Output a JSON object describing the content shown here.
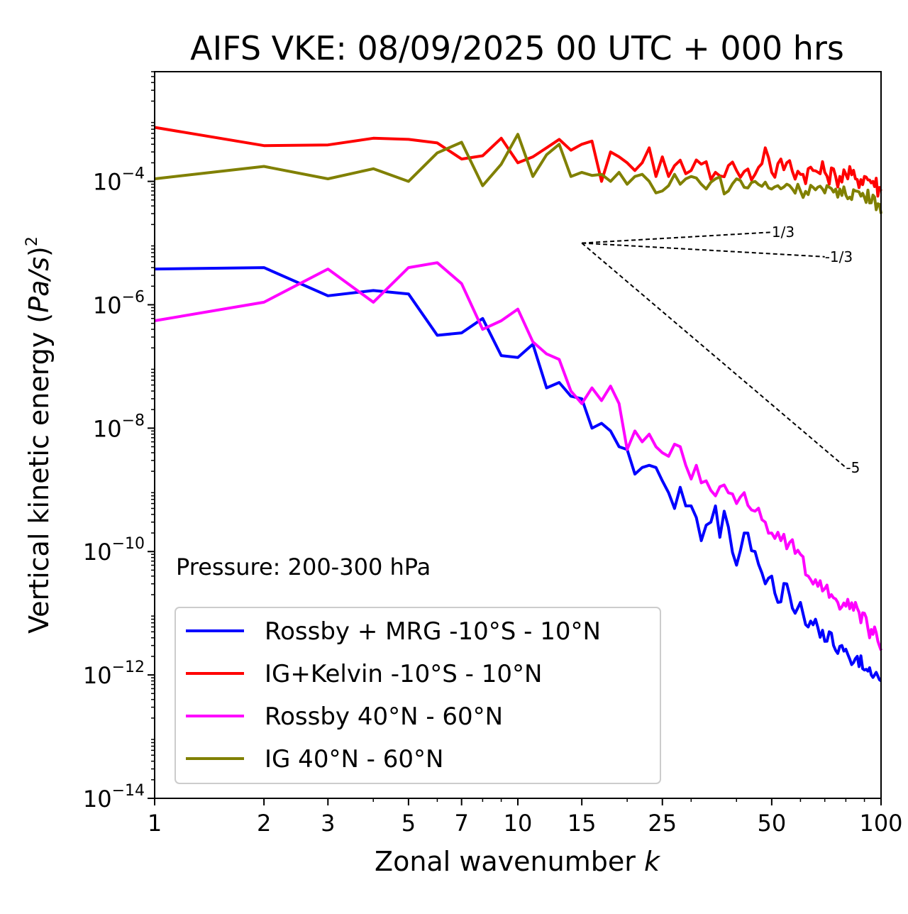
{
  "chart_data": {
    "type": "line",
    "title": "AIFS VKE: 08/09/2025 00 UTC + 000 hrs",
    "xlabel": "Zonal wavenumber ",
    "xlabel_var": "k",
    "ylabel": "Vertical kinetic energy (",
    "ylabel_var": "Pa/s",
    "ylabel_close": ")",
    "ylabel_exp": "2",
    "annotation": "Pressure: 200-300 hPa",
    "x_scale": "log",
    "y_scale": "log",
    "xlim": [
      1,
      100
    ],
    "ylim": [
      1e-14,
      0.006
    ],
    "x_ticks": [
      1,
      2,
      3,
      5,
      7,
      10,
      15,
      25,
      50,
      100
    ],
    "x_tick_labels": [
      "1",
      "2",
      "3",
      "5",
      "7",
      "10",
      "15",
      "25",
      "50",
      "100"
    ],
    "y_ticks": [
      -4,
      -6,
      -8,
      -10,
      -12,
      -14
    ],
    "y_tick_base": "10",
    "y_tick_exps": [
      "−4",
      "−6",
      "−8",
      "−10",
      "−12",
      "−14"
    ],
    "legend_position": "lower-left",
    "series": [
      {
        "name": "Rossby + MRG -10°S - 10°N",
        "color": "#0000ff",
        "anchors": [
          [
            1,
            3.8e-06
          ],
          [
            2,
            4e-06
          ],
          [
            3,
            1.4e-06
          ],
          [
            4,
            1.7e-06
          ],
          [
            5,
            1.5e-06
          ],
          [
            6,
            3.2e-07
          ],
          [
            7,
            3.5e-07
          ],
          [
            8,
            6e-07
          ],
          [
            9,
            1.5e-07
          ],
          [
            10,
            1.4e-07
          ],
          [
            11,
            2.3e-07
          ],
          [
            12,
            4.5e-08
          ],
          [
            13,
            5.5e-08
          ],
          [
            14,
            3.3e-08
          ],
          [
            15,
            3e-08
          ],
          [
            16,
            1e-08
          ],
          [
            17,
            1.2e-08
          ],
          [
            18,
            9e-09
          ],
          [
            19,
            5e-09
          ],
          [
            20,
            4.5e-09
          ],
          [
            21,
            1.8e-09
          ],
          [
            22,
            2.3e-09
          ],
          [
            23,
            2.5e-09
          ],
          [
            24,
            2.3e-09
          ],
          [
            25,
            1.4e-09
          ],
          [
            26,
            9e-10
          ],
          [
            27,
            5e-10
          ],
          [
            28,
            1.1e-09
          ],
          [
            29,
            5.5e-10
          ],
          [
            30,
            5.5e-10
          ],
          [
            32,
            1.5e-10
          ],
          [
            34,
            3e-10
          ],
          [
            35,
            5.5e-10
          ],
          [
            36,
            1.7e-10
          ],
          [
            37,
            4.5e-10
          ],
          [
            38,
            2.5e-10
          ],
          [
            40,
            6e-11
          ],
          [
            42,
            2e-10
          ],
          [
            45,
            1e-10
          ],
          [
            48,
            3e-11
          ],
          [
            50,
            4e-11
          ],
          [
            52,
            1.5e-11
          ],
          [
            55,
            3e-11
          ],
          [
            58,
            1e-11
          ],
          [
            60,
            1.5e-11
          ],
          [
            63,
            6e-12
          ],
          [
            66,
            8e-12
          ],
          [
            70,
            3.5e-12
          ],
          [
            72,
            5e-12
          ],
          [
            75,
            2.5e-12
          ],
          [
            78,
            3e-12
          ],
          [
            82,
            1.8e-12
          ],
          [
            86,
            2e-12
          ],
          [
            90,
            1.2e-12
          ],
          [
            94,
            1e-12
          ],
          [
            97,
            1.1e-12
          ],
          [
            100,
            8e-13
          ]
        ],
        "noise": 0.12
      },
      {
        "name": "IG+Kelvin -10°S - 10°N",
        "color": "#ff0000",
        "anchors": [
          [
            1,
            0.00075
          ],
          [
            2,
            0.00038
          ],
          [
            3,
            0.00039
          ],
          [
            4,
            0.0005
          ],
          [
            5,
            0.00048
          ],
          [
            6,
            0.00042
          ],
          [
            7,
            0.00023
          ],
          [
            8,
            0.00026
          ],
          [
            9,
            0.0005
          ],
          [
            10,
            0.0002
          ],
          [
            11,
            0.00025
          ],
          [
            12,
            0.00035
          ],
          [
            13,
            0.00048
          ],
          [
            14,
            0.00032
          ],
          [
            15,
            0.0004
          ],
          [
            16,
            0.00045
          ],
          [
            17,
            0.0001
          ],
          [
            18,
            0.0003
          ],
          [
            19,
            0.00025
          ],
          [
            20,
            0.0002
          ],
          [
            21,
            0.00015
          ],
          [
            22,
            0.0002
          ],
          [
            23,
            0.00035
          ],
          [
            24,
            0.00012
          ],
          [
            25,
            0.00025
          ],
          [
            26,
            0.00012
          ],
          [
            27,
            0.00018
          ],
          [
            28,
            0.00022
          ],
          [
            30,
            0.00015
          ],
          [
            32,
            0.00019
          ],
          [
            35,
            0.00014
          ],
          [
            38,
            0.00018
          ],
          [
            40,
            0.00015
          ],
          [
            45,
            0.00013
          ],
          [
            48,
            0.00035
          ],
          [
            50,
            0.00014
          ],
          [
            55,
            0.0002
          ],
          [
            60,
            0.00013
          ],
          [
            65,
            0.00015
          ],
          [
            70,
            0.00014
          ],
          [
            75,
            0.00012
          ],
          [
            80,
            0.00013
          ],
          [
            85,
            0.00011
          ],
          [
            90,
            0.00012
          ],
          [
            95,
            0.0001
          ],
          [
            100,
            7e-05
          ]
        ],
        "noise": 0.18
      },
      {
        "name": "Rossby 40°N - 60°N",
        "color": "#ff00ff",
        "anchors": [
          [
            1,
            5.5e-07
          ],
          [
            2,
            1.1e-06
          ],
          [
            3,
            3.8e-06
          ],
          [
            4,
            1.1e-06
          ],
          [
            5,
            4e-06
          ],
          [
            6,
            4.8e-06
          ],
          [
            7,
            2.2e-06
          ],
          [
            8,
            4e-07
          ],
          [
            9,
            5.5e-07
          ],
          [
            10,
            8.5e-07
          ],
          [
            11,
            2.5e-07
          ],
          [
            12,
            1.6e-07
          ],
          [
            13,
            1.3e-07
          ],
          [
            14,
            4e-08
          ],
          [
            15,
            2.5e-08
          ],
          [
            16,
            4.5e-08
          ],
          [
            17,
            2.8e-08
          ],
          [
            18,
            4.8e-08
          ],
          [
            19,
            2.5e-08
          ],
          [
            20,
            4.5e-09
          ],
          [
            21,
            9e-09
          ],
          [
            22,
            6e-09
          ],
          [
            23,
            8e-09
          ],
          [
            24,
            5e-09
          ],
          [
            25,
            4e-09
          ],
          [
            26,
            3.5e-09
          ],
          [
            27,
            5.5e-09
          ],
          [
            28,
            5e-09
          ],
          [
            29,
            2.5e-09
          ],
          [
            30,
            1.5e-09
          ],
          [
            31,
            2.5e-09
          ],
          [
            32,
            1.3e-09
          ],
          [
            33,
            1.4e-09
          ],
          [
            35,
            8e-10
          ],
          [
            37,
            1.2e-09
          ],
          [
            40,
            6e-10
          ],
          [
            42,
            9e-10
          ],
          [
            45,
            4.5e-10
          ],
          [
            48,
            3e-10
          ],
          [
            50,
            2e-10
          ],
          [
            53,
            1.5e-10
          ],
          [
            56,
            1.4e-10
          ],
          [
            60,
            9e-11
          ],
          [
            63,
            4e-11
          ],
          [
            66,
            3.5e-11
          ],
          [
            70,
            2.5e-11
          ],
          [
            73,
            2e-11
          ],
          [
            76,
            1.5e-11
          ],
          [
            80,
            1.3e-11
          ],
          [
            85,
            1.5e-11
          ],
          [
            88,
            7e-12
          ],
          [
            90,
            1e-11
          ],
          [
            93,
            4e-12
          ],
          [
            96,
            6e-12
          ],
          [
            100,
            2.5e-12
          ]
        ],
        "noise": 0.12
      },
      {
        "name": "IG 40°N - 60°N",
        "color": "#808000",
        "anchors": [
          [
            1,
            0.00011
          ],
          [
            2,
            0.000175
          ],
          [
            3,
            0.00011
          ],
          [
            4,
            0.00016
          ],
          [
            5,
            0.0001
          ],
          [
            6,
            0.00029
          ],
          [
            7,
            0.00043
          ],
          [
            8,
            8.5e-05
          ],
          [
            9,
            0.00019
          ],
          [
            10,
            0.00058
          ],
          [
            11,
            0.00012
          ],
          [
            12,
            0.00027
          ],
          [
            13,
            0.0004
          ],
          [
            14,
            0.00012
          ],
          [
            15,
            0.00014
          ],
          [
            16,
            0.000125
          ],
          [
            17,
            0.00013
          ],
          [
            18,
            0.0001
          ],
          [
            19,
            0.00014
          ],
          [
            20,
            9e-05
          ],
          [
            21,
            0.00012
          ],
          [
            22,
            0.00013
          ],
          [
            23,
            0.0001
          ],
          [
            24,
            6.5e-05
          ],
          [
            25,
            7e-05
          ],
          [
            26,
            8.5e-05
          ],
          [
            27,
            0.00013
          ],
          [
            28,
            9e-05
          ],
          [
            30,
            0.00012
          ],
          [
            32,
            9e-05
          ],
          [
            35,
            0.00011
          ],
          [
            38,
            7e-05
          ],
          [
            40,
            0.00011
          ],
          [
            42,
            8e-05
          ],
          [
            45,
            0.0001
          ],
          [
            50,
            7.5e-05
          ],
          [
            55,
            9e-05
          ],
          [
            60,
            7e-05
          ],
          [
            65,
            8e-05
          ],
          [
            70,
            6.5e-05
          ],
          [
            75,
            7.5e-05
          ],
          [
            80,
            6e-05
          ],
          [
            85,
            7e-05
          ],
          [
            90,
            5.5e-05
          ],
          [
            95,
            6e-05
          ],
          [
            100,
            3e-05
          ]
        ],
        "noise": 0.12
      }
    ],
    "reference_slopes": [
      {
        "label": "1/3",
        "x0": 15,
        "y0": 1e-05,
        "x1": 50,
        "y1": 1.5e-05
      },
      {
        "label": "-1/3",
        "x0": 15,
        "y0": 1e-05,
        "x1": 70,
        "y1": 6e-06
      },
      {
        "label": "-5",
        "x0": 15,
        "y0": 1e-05,
        "x1": 80,
        "y1": 2.3e-09
      }
    ]
  }
}
